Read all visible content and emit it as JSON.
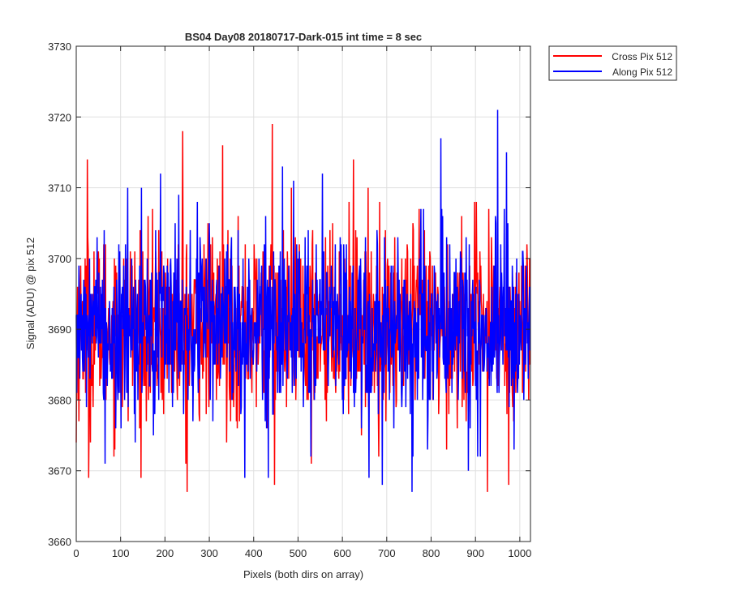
{
  "chart_data": {
    "type": "line",
    "title": "BS04 Day08 20180717-Dark-015 int time = 8 sec",
    "xlabel": "Pixels (both dirs on array)",
    "ylabel": "Signal (ADU) @ pix 512",
    "xlim": [
      0,
      1024
    ],
    "ylim": [
      3660,
      3730
    ],
    "xticks": [
      0,
      100,
      200,
      300,
      400,
      500,
      600,
      700,
      800,
      900,
      1000
    ],
    "yticks": [
      3660,
      3670,
      3680,
      3690,
      3700,
      3710,
      3720,
      3730
    ],
    "xtick_labels": [
      "0",
      "100",
      "200",
      "300",
      "400",
      "500",
      "600",
      "700",
      "800",
      "900",
      "1000"
    ],
    "ytick_labels": [
      "3660",
      "3670",
      "3680",
      "3690",
      "3700",
      "3710",
      "3720",
      "3730"
    ],
    "grid": true,
    "legend_position": "outside-top-right",
    "series": [
      {
        "name": "Cross Pix 512",
        "color": "#ff0000",
        "noise": {
          "pixels": 1024,
          "mean": 3690.5,
          "sd": 6.5,
          "min": 3667,
          "max": 3719
        },
        "points": [
          [
            0,
            3674
          ],
          [
            25,
            3714
          ],
          [
            28,
            3669
          ],
          [
            240,
            3718
          ],
          [
            250,
            3667
          ],
          [
            330,
            3716
          ],
          [
            442,
            3719
          ],
          [
            447,
            3668
          ],
          [
            530,
            3671
          ],
          [
            625,
            3714
          ],
          [
            835,
            3673
          ],
          [
            927,
            3667
          ],
          [
            975,
            3668
          ]
        ]
      },
      {
        "name": "Along Pix 512",
        "color": "#0000ff",
        "noise": {
          "pixels": 1024,
          "mean": 3690.5,
          "sd": 6.5,
          "min": 3667,
          "max": 3721
        },
        "points": [
          [
            65,
            3671
          ],
          [
            147,
            3710
          ],
          [
            190,
            3712
          ],
          [
            380,
            3669
          ],
          [
            490,
            3711
          ],
          [
            555,
            3712
          ],
          [
            660,
            3669
          ],
          [
            690,
            3668
          ],
          [
            757,
            3667
          ],
          [
            822,
            3717
          ],
          [
            950,
            3721
          ],
          [
            970,
            3715
          ]
        ]
      }
    ]
  }
}
